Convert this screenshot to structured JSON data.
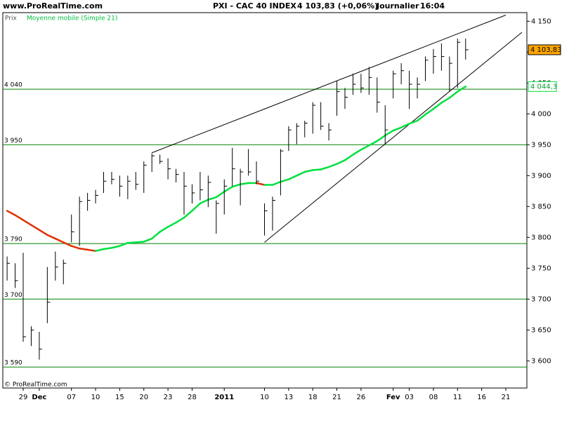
{
  "header": {
    "site": "www.ProRealTime.com",
    "copyright": "© ProRealTime.com"
  },
  "chart_data": {
    "type": "ohlc",
    "title": "PXI - CAC 40 INDEX",
    "quote": "4 103,83 (+0,06%)",
    "period": "Journalier",
    "time": "16:04",
    "y_label": "Prix",
    "categories": [
      null,
      null,
      "29",
      null,
      "Dec",
      null,
      null,
      null,
      "07",
      null,
      null,
      "10",
      null,
      null,
      "15",
      null,
      null,
      "20",
      null,
      null,
      "23",
      null,
      null,
      "28",
      null,
      null,
      null,
      "2011",
      null,
      null,
      null,
      null,
      "10",
      null,
      null,
      "13",
      null,
      null,
      "18",
      null,
      null,
      "21",
      null,
      null,
      "26",
      null,
      null,
      null,
      "Fev",
      null,
      "03",
      null,
      null,
      "08",
      null,
      null,
      "11",
      null,
      null,
      "16",
      null,
      null,
      "21"
    ],
    "high": [
      3769,
      3758,
      3775,
      3656,
      3647,
      3752,
      3777,
      3764,
      3837,
      3866,
      3872,
      3877,
      3906,
      3906,
      3900,
      3900,
      3906,
      3923,
      3936,
      3934,
      3928,
      3911,
      3906,
      3886,
      3906,
      3900,
      3860,
      3894,
      3945,
      3911,
      3943,
      3923,
      3855,
      3866,
      3943,
      3980,
      3985,
      3989,
      4019,
      4019,
      3985,
      4053,
      4042,
      4065,
      4065,
      4076,
      4059,
      4014,
      4070,
      4082,
      4070,
      4059,
      4093,
      4105,
      4114,
      4093,
      4122,
      4122,
      null,
      null,
      null,
      null,
      null
    ],
    "low": [
      3730,
      3718,
      3631,
      3624,
      3602,
      3661,
      3730,
      3724,
      3792,
      3786,
      3843,
      3855,
      3872,
      3886,
      3866,
      3862,
      3877,
      3872,
      3906,
      3919,
      3894,
      3889,
      3837,
      3855,
      3860,
      3849,
      3806,
      3837,
      3883,
      3852,
      3900,
      3886,
      3803,
      3811,
      3868,
      3940,
      3951,
      3962,
      3968,
      3974,
      3957,
      3997,
      4008,
      4031,
      4034,
      4031,
      4002,
      3951,
      4025,
      4048,
      4008,
      4025,
      4053,
      4065,
      4070,
      4036,
      4042,
      4088,
      null,
      null,
      null,
      null,
      null
    ],
    "close": {
      "values": [
        3758,
        3730,
        3639,
        3650,
        3619,
        3695,
        3752,
        3758,
        3809,
        3858,
        3860,
        3868,
        3891,
        3894,
        3883,
        3891,
        3886,
        3917,
        3932,
        3923,
        3911,
        3902,
        3883,
        3872,
        3877,
        3889,
        3855,
        3883,
        3911,
        3906,
        3906,
        3891,
        3843,
        3860,
        3940,
        3974,
        3980,
        3985,
        4014,
        3980,
        3974,
        4036,
        4027,
        4048,
        4042,
        4059,
        4019,
        3974,
        4065,
        4070,
        4048,
        4048,
        4087,
        4093,
        4093,
        4082,
        4116,
        4103.83,
        null,
        null,
        null,
        null,
        null
      ],
      "value_labels": [
        null,
        null,
        null,
        null,
        null,
        null,
        null,
        null,
        null,
        null,
        null,
        null,
        null,
        null,
        null,
        null,
        null,
        null,
        null,
        null,
        null,
        null,
        null,
        null,
        null,
        null,
        null,
        null,
        null,
        null,
        null,
        null,
        null,
        null,
        null,
        null,
        null,
        null,
        null,
        null,
        null,
        null,
        null,
        null,
        null,
        null,
        null,
        null,
        null,
        null,
        null,
        null,
        null,
        null,
        null,
        null,
        null,
        "4 103,83",
        null,
        null,
        null,
        null,
        null
      ],
      "color": "#000000",
      "tag_color": "#ffa500"
    },
    "moving_average": {
      "name": "Moyenne mobile (Simple 21)",
      "up_color": "#00e040",
      "down_color": "#e03000",
      "values": [
        3843,
        3836,
        3828,
        3820,
        3812,
        3804,
        3798,
        3792,
        3786,
        3782,
        3780,
        3778,
        3781,
        3783,
        3786,
        3791,
        3792,
        3793,
        3798,
        3809,
        3817,
        3824,
        3832,
        3843,
        3855,
        3861,
        3865,
        3874,
        3882,
        3886,
        3888,
        3888,
        3885,
        3885,
        3890,
        3894,
        3900,
        3906,
        3909,
        3910,
        3914,
        3919,
        3925,
        3934,
        3942,
        3949,
        3956,
        3965,
        3973,
        3978,
        3984,
        3989,
        3999,
        4008,
        4018,
        4026,
        4036,
        4044.3,
        null,
        null,
        null,
        null,
        null
      ],
      "value_labels": [
        null,
        null,
        null,
        null,
        null,
        null,
        null,
        null,
        null,
        null,
        null,
        null,
        null,
        null,
        null,
        null,
        null,
        null,
        null,
        null,
        null,
        null,
        null,
        null,
        null,
        null,
        null,
        null,
        null,
        null,
        null,
        null,
        null,
        null,
        null,
        null,
        null,
        null,
        null,
        null,
        null,
        null,
        null,
        null,
        null,
        null,
        null,
        null,
        null,
        null,
        null,
        null,
        null,
        null,
        null,
        null,
        null,
        "4 044,3",
        null,
        null,
        null,
        null,
        null
      ]
    },
    "levels": [
      {
        "value": 4040,
        "label": "4 040"
      },
      {
        "value": 3950,
        "label": "3 950"
      },
      {
        "value": 3790,
        "label": "3 790"
      },
      {
        "value": 3700,
        "label": "3 700"
      },
      {
        "value": 3590,
        "label": "3 590"
      }
    ],
    "level_color": "#008000",
    "trendlines": [
      {
        "points": [
          [
            18,
            3937
          ],
          [
            62,
            4160
          ]
        ]
      },
      {
        "points": [
          [
            32,
            3792
          ],
          [
            64,
            4132
          ]
        ]
      }
    ],
    "ylim": [
      3556,
      4164
    ],
    "yticks": [
      {
        "value": 3600,
        "label": "3 600"
      },
      {
        "value": 3650,
        "label": "3 650"
      },
      {
        "value": 3700,
        "label": "3 700"
      },
      {
        "value": 3750,
        "label": "3 750"
      },
      {
        "value": 3800,
        "label": "3 800"
      },
      {
        "value": 3850,
        "label": "3 850"
      },
      {
        "value": 3900,
        "label": "3 900"
      },
      {
        "value": 3950,
        "label": "3 950"
      },
      {
        "value": 4000,
        "label": "4 000"
      },
      {
        "value": 4050,
        "label": "4 050"
      },
      {
        "value": 4100,
        "label": "4 100"
      },
      {
        "value": 4150,
        "label": "4 150"
      }
    ]
  }
}
